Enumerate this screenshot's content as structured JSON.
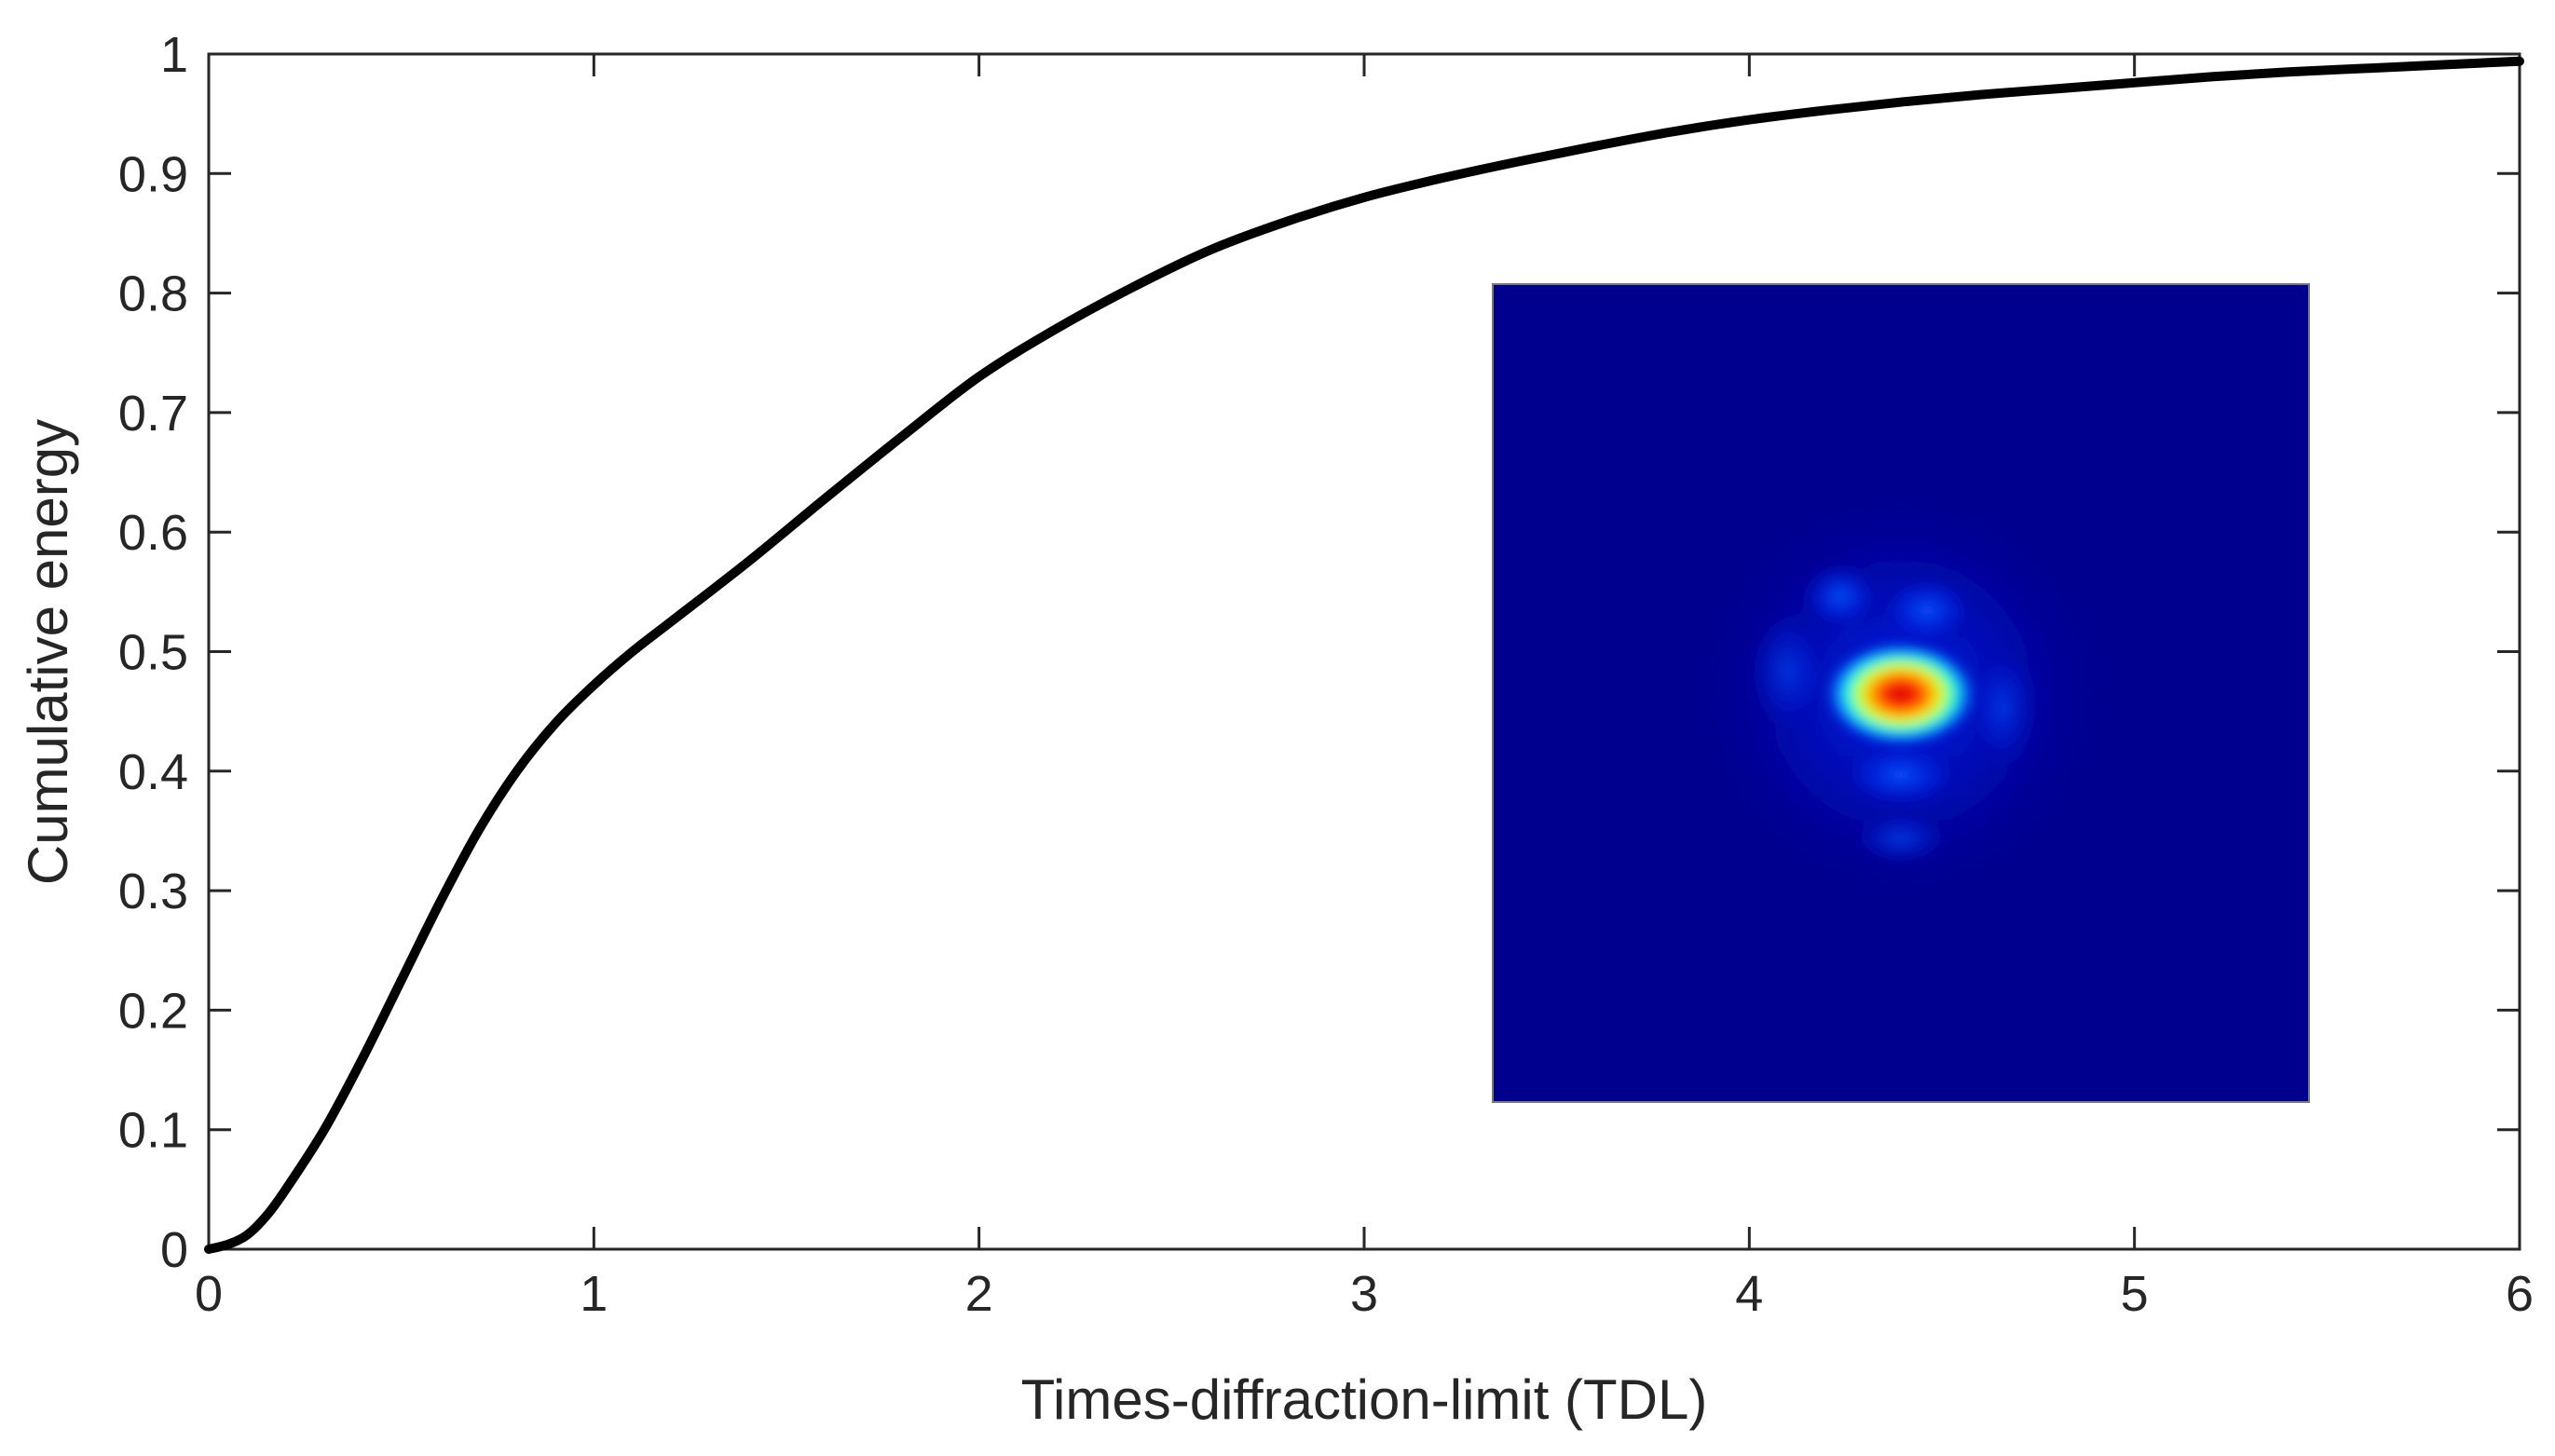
{
  "chart_data": {
    "type": "line",
    "title": "",
    "xlabel": "Times-diffraction-limit (TDL)",
    "ylabel": "Cumulative energy",
    "xlim": [
      0,
      6
    ],
    "ylim": [
      0,
      1
    ],
    "xticks": [
      "0",
      "1",
      "2",
      "3",
      "4",
      "5",
      "6"
    ],
    "yticks": [
      "0",
      "0.1",
      "0.2",
      "0.3",
      "0.4",
      "0.5",
      "0.6",
      "0.7",
      "0.8",
      "0.9",
      "1"
    ],
    "grid": false,
    "legend": "none",
    "series": [
      {
        "color": "#000000",
        "x": [
          0,
          0.05,
          0.1,
          0.15,
          0.2,
          0.3,
          0.4,
          0.5,
          0.6,
          0.7,
          0.8,
          0.9,
          1.0,
          1.1,
          1.2,
          1.4,
          1.6,
          1.8,
          2.0,
          2.2,
          2.4,
          2.6,
          2.8,
          3.0,
          3.2,
          3.4,
          3.6,
          3.8,
          4.0,
          4.2,
          4.4,
          4.6,
          4.8,
          5.0,
          5.2,
          5.4,
          5.6,
          5.8,
          6.0
        ],
        "y": [
          0,
          0.004,
          0.012,
          0.028,
          0.05,
          0.1,
          0.16,
          0.225,
          0.29,
          0.35,
          0.4,
          0.44,
          0.472,
          0.5,
          0.525,
          0.575,
          0.628,
          0.68,
          0.73,
          0.77,
          0.805,
          0.836,
          0.86,
          0.88,
          0.896,
          0.91,
          0.923,
          0.935,
          0.945,
          0.953,
          0.96,
          0.966,
          0.971,
          0.976,
          0.981,
          0.985,
          0.988,
          0.991,
          0.994
        ]
      }
    ],
    "inset": {
      "type": "heatmap",
      "colormap": "jet",
      "background_color": "#00008f",
      "peak_color": "#d81010"
    }
  }
}
